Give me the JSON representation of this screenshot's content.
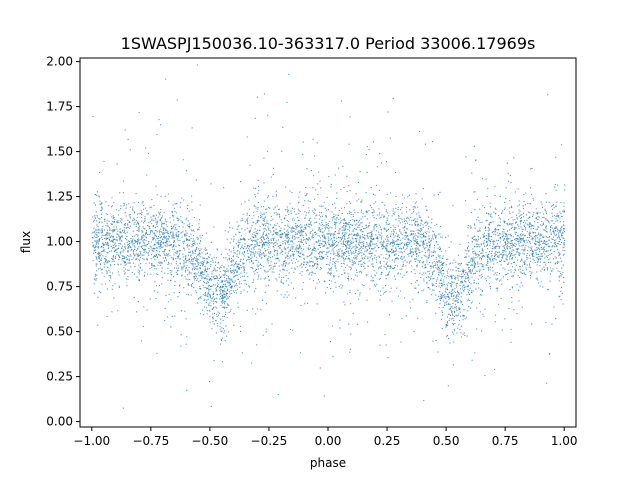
{
  "chart_data": {
    "type": "scatter",
    "title": "1SWASPJ150036.10-363317.0 Period 33006.17969s",
    "xlabel": "phase",
    "ylabel": "flux",
    "xlim": [
      -1.05,
      1.05
    ],
    "ylim": [
      -0.03,
      2.02
    ],
    "xticks": [
      -1.0,
      -0.75,
      -0.5,
      -0.25,
      0.0,
      0.25,
      0.5,
      0.75,
      1.0
    ],
    "xtick_labels": [
      "−1.00",
      "−0.75",
      "−0.50",
      "−0.25",
      "0.00",
      "0.25",
      "0.50",
      "0.75",
      "1.00"
    ],
    "yticks": [
      0.0,
      0.25,
      0.5,
      0.75,
      1.0,
      1.25,
      1.5,
      1.75,
      2.0
    ],
    "ytick_labels": [
      "0.00",
      "0.25",
      "0.50",
      "0.75",
      "1.00",
      "1.25",
      "1.50",
      "1.75",
      "2.00"
    ],
    "grid": false,
    "point_color": "#1f77b4",
    "phase_range": [
      -1.0,
      1.0
    ],
    "baseline_flux": 1.0,
    "eclipses": [
      {
        "phase": -0.47,
        "min_flux": 0.72,
        "width": 0.09
      },
      {
        "phase": 0.53,
        "min_flux": 0.68,
        "width": 0.08
      }
    ]
  }
}
